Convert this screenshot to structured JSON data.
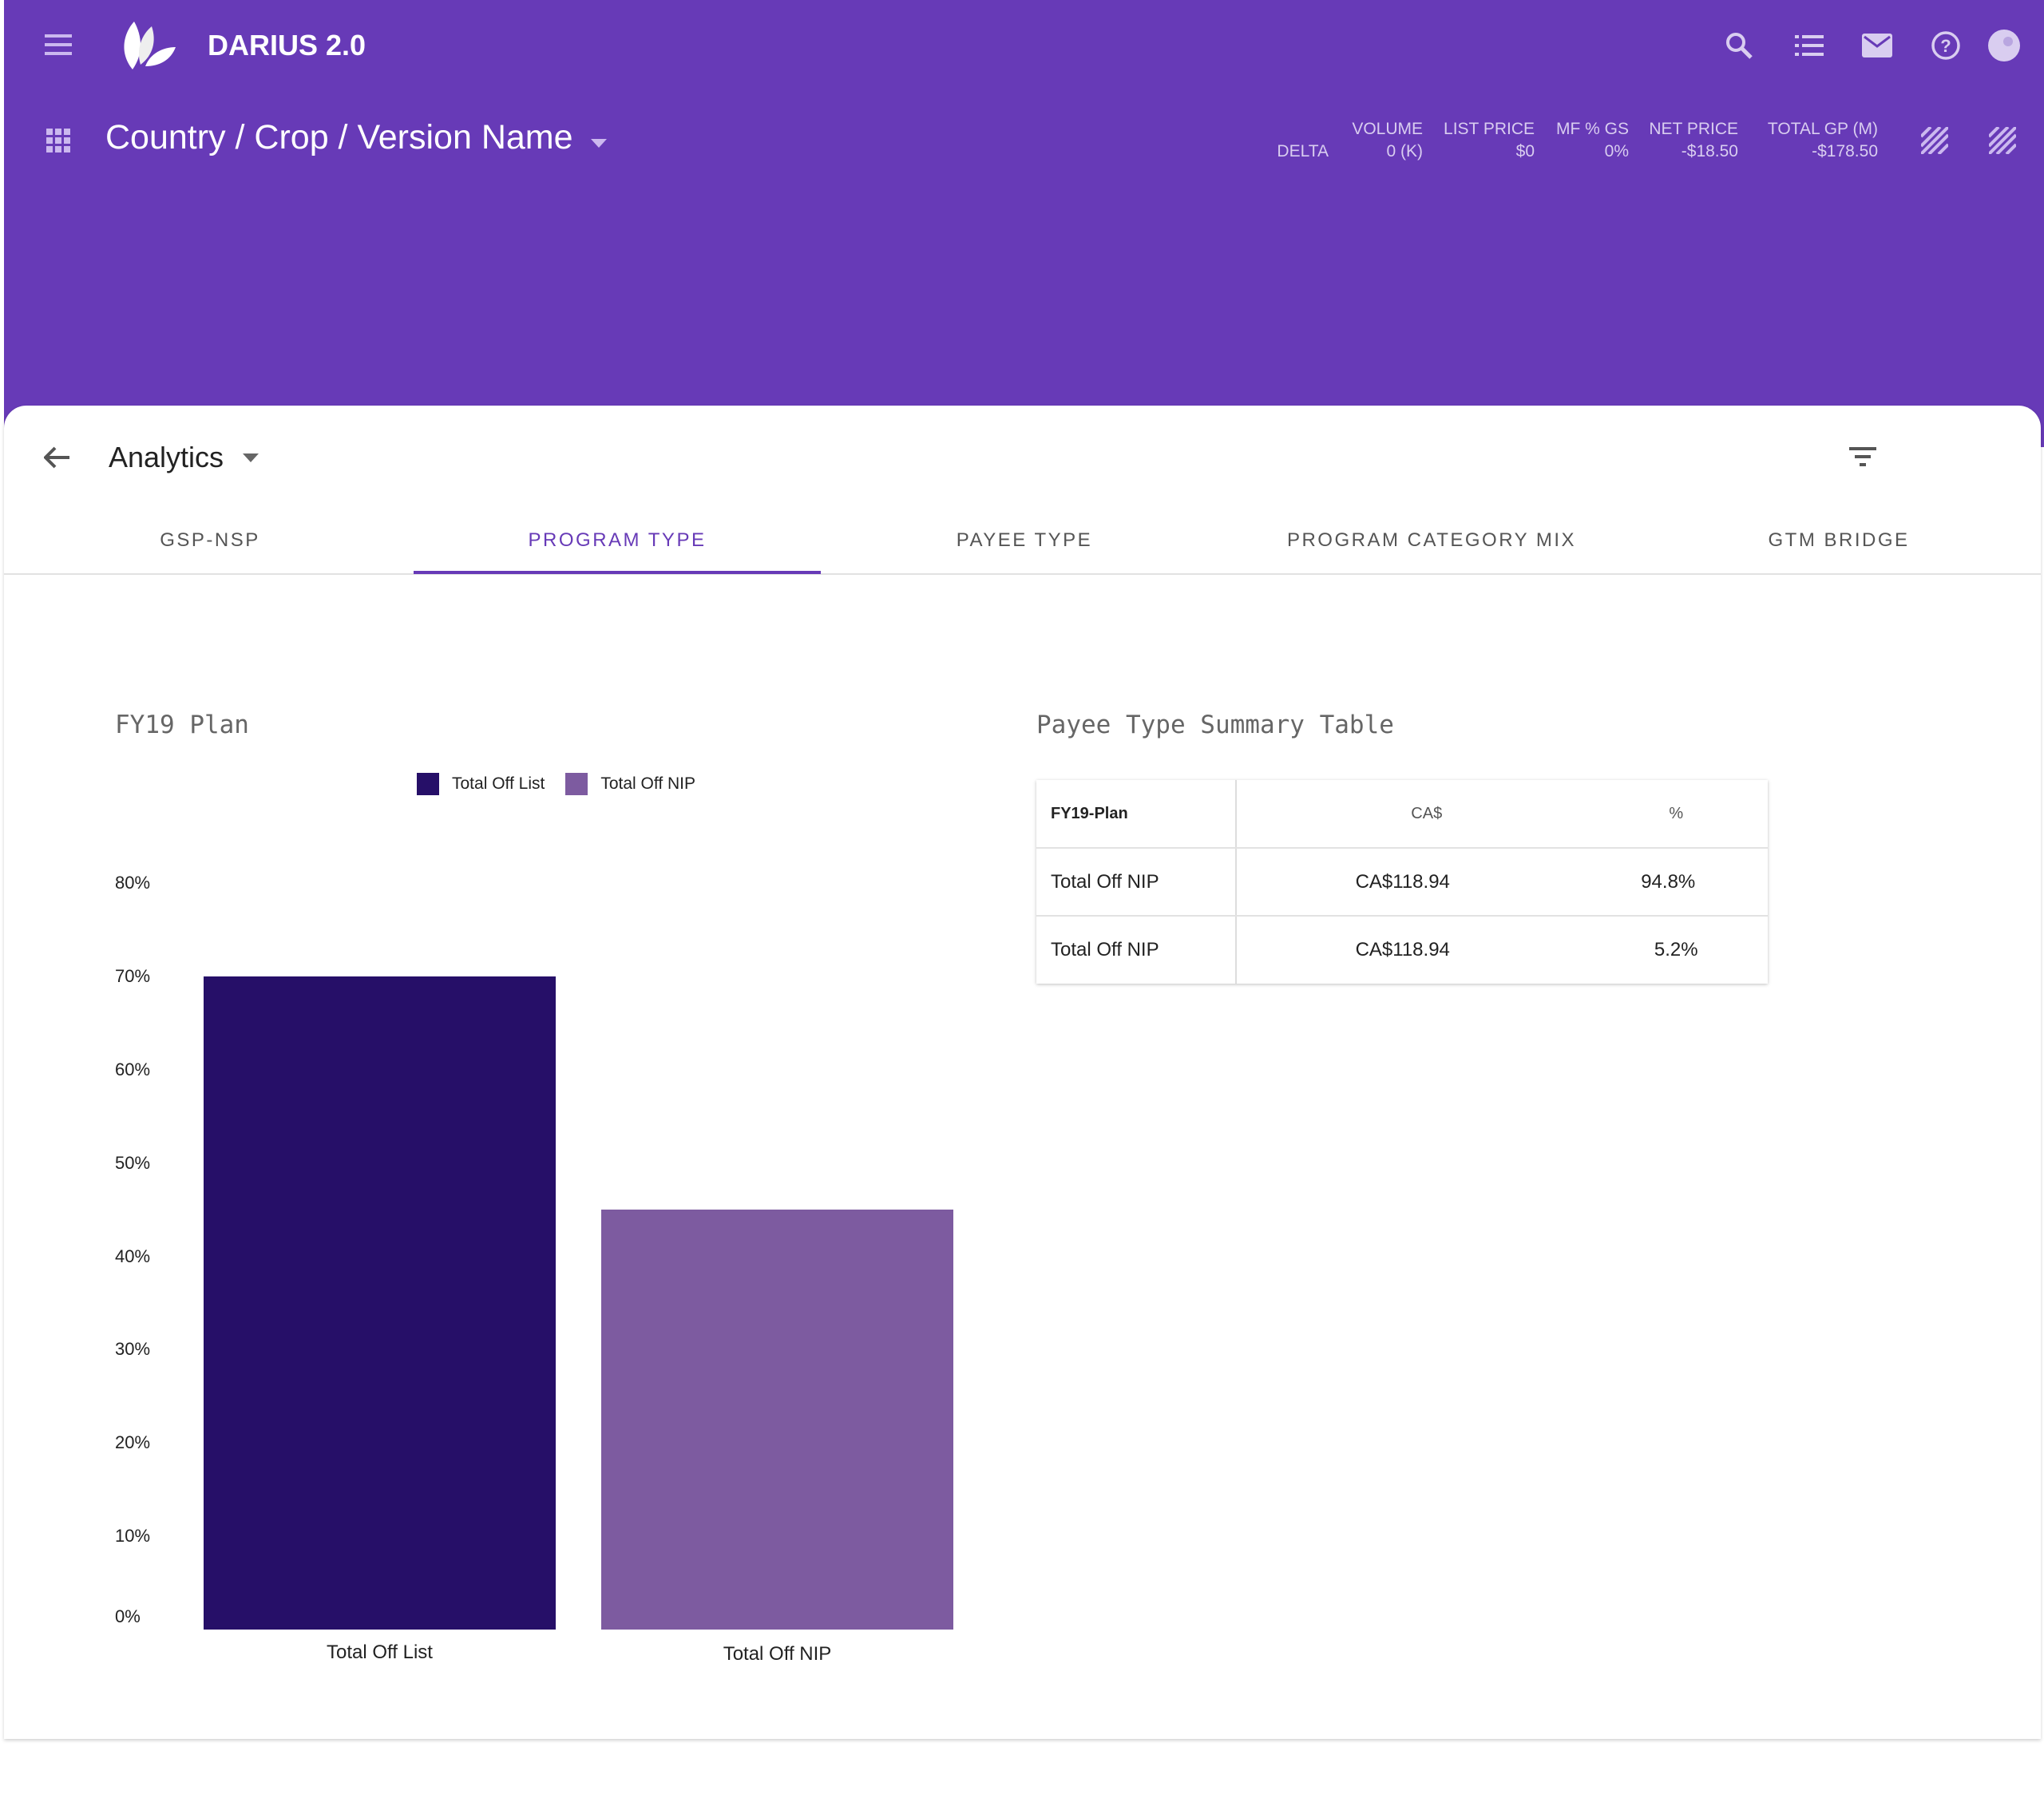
{
  "app": {
    "title": "DARIUS 2.0",
    "breadcrumb": "Country / Crop / Version Name"
  },
  "header_icons": [
    "menu-icon",
    "leaf-logo",
    "search-icon",
    "list-icon",
    "mail-icon",
    "help-icon",
    "avatar",
    "grid-icon",
    "striped-icon"
  ],
  "stats": {
    "row_label": "DELTA",
    "columns": [
      {
        "label": "VOLUME",
        "value": "0 (K)"
      },
      {
        "label": "LIST PRICE",
        "value": "$0"
      },
      {
        "label": "MF % GS",
        "value": "0%"
      },
      {
        "label": "NET PRICE",
        "value": "-$18.50"
      },
      {
        "label": "TOTAL GP (M)",
        "value": "-$178.50"
      }
    ]
  },
  "section": {
    "title": "Analytics"
  },
  "tabs": [
    {
      "label": "GSP-NSP"
    },
    {
      "label": "PROGRAM TYPE",
      "active": true
    },
    {
      "label": "PAYEE TYPE"
    },
    {
      "label": "PROGRAM CATEGORY MIX"
    },
    {
      "label": "GTM BRIDGE"
    }
  ],
  "colors": {
    "brand": "#673AB7",
    "series1": "#260F68",
    "series2": "#7D5BA0"
  },
  "chart_data": {
    "type": "bar",
    "title": "FY19 Plan",
    "categories": [
      "Total Off List",
      "Total Off NIP"
    ],
    "series": [
      {
        "name": "Total Off List",
        "values": [
          70,
          null
        ]
      },
      {
        "name": "Total Off NIP",
        "values": [
          null,
          45
        ]
      }
    ],
    "values": [
      70,
      45
    ],
    "legend": [
      "Total Off List",
      "Total Off NIP"
    ],
    "legend_position": "top",
    "yticks": [
      "0%",
      "10%",
      "20%",
      "30%",
      "40%",
      "50%",
      "60%",
      "70%",
      "80%"
    ],
    "ylim": [
      0,
      80
    ],
    "grid": false
  },
  "table": {
    "title": "Payee Type Summary Table",
    "headers": [
      "FY19-Plan",
      "CA$",
      "%"
    ],
    "rows": [
      [
        "Total Off NIP",
        "CA$118.94",
        "94.8%"
      ],
      [
        "Total Off NIP",
        "CA$118.94",
        "5.2%"
      ]
    ]
  }
}
